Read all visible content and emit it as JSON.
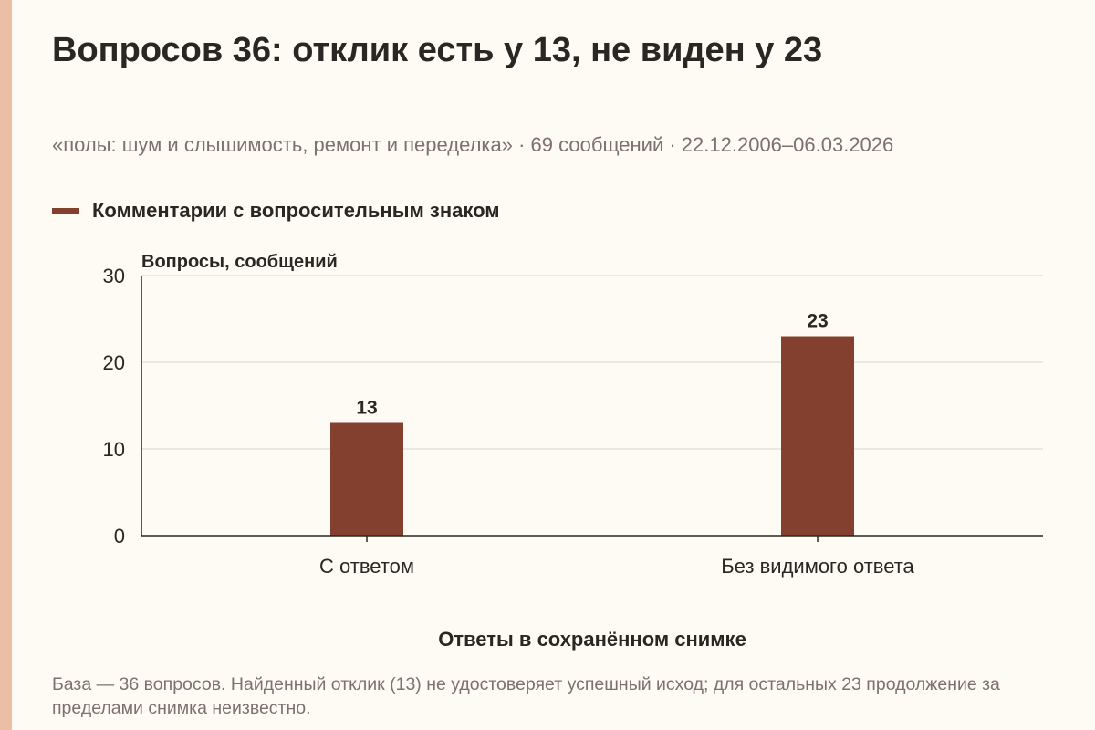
{
  "title": "Вопросов 36: отклик есть у 13, не виден у 23",
  "subtitle": "«полы: шум и слышимость, ремонт и переделка» · 69 сообщений · 22.12.2006–06.03.2026",
  "colors": {
    "bar": "#84402f",
    "accent_strip": "#ebbea6",
    "background": "#fdfbf4"
  },
  "footnote": "База — 36 вопросов. Найденный отклик (13) не удостоверяет успешный исход; для остальных 23 продолжение за пределами снимка неизвестно.",
  "chart_data": {
    "type": "bar",
    "categories": [
      "С ответом",
      "Без видимого ответа"
    ],
    "series": [
      {
        "name": "Комментарии с вопросительным знаком",
        "values": [
          13,
          23
        ]
      }
    ],
    "data_labels": [
      "13",
      "23"
    ],
    "xlabel": "Ответы в сохранённом снимке",
    "ylabel": "Вопросы, сообщений",
    "ylim": [
      0,
      30
    ],
    "yticks": [
      0,
      10,
      20,
      30
    ],
    "grid": true,
    "legend_position": "top-left"
  }
}
